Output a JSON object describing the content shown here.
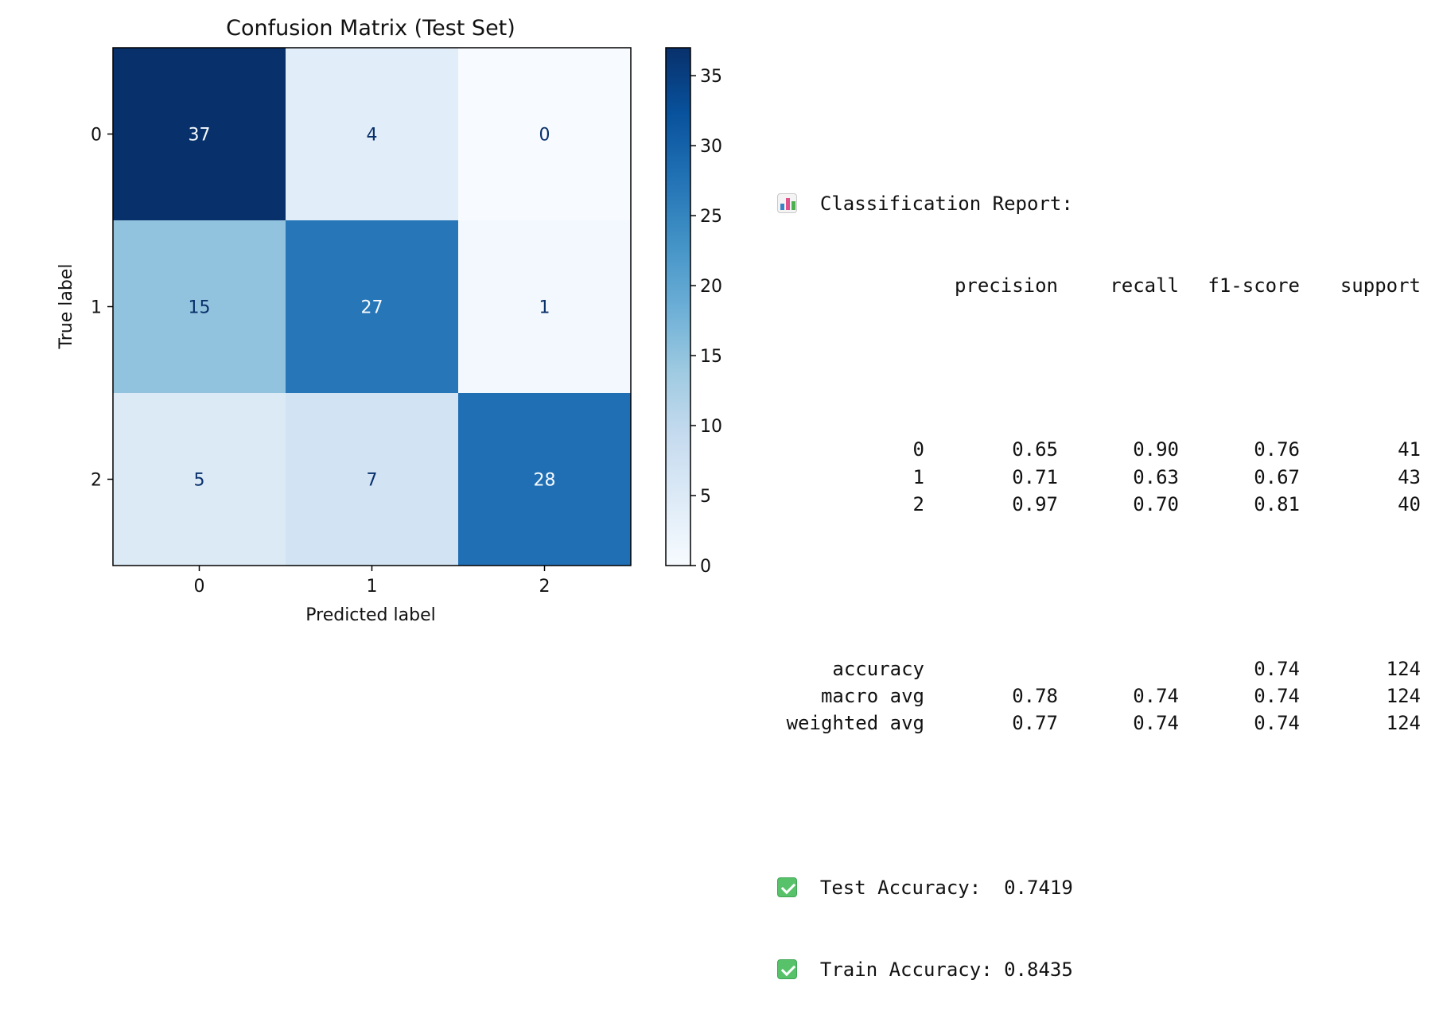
{
  "chart_data": {
    "type": "heatmap",
    "title": "Confusion Matrix (Test Set)",
    "xlabel": "Predicted label",
    "ylabel": "True label",
    "x_categories": [
      "0",
      "1",
      "2"
    ],
    "y_categories": [
      "0",
      "1",
      "2"
    ],
    "values": [
      [
        37,
        4,
        0
      ],
      [
        15,
        27,
        1
      ],
      [
        5,
        7,
        28
      ]
    ],
    "colormap": "Blues",
    "colorbar": {
      "min": 0,
      "max": 37,
      "ticks": [
        0,
        5,
        10,
        15,
        20,
        25,
        30,
        35
      ]
    }
  },
  "report": {
    "title": "Classification Report:",
    "title_icon": "bar-chart-icon",
    "columns": [
      "precision",
      "recall",
      "f1-score",
      "support"
    ],
    "rows": [
      {
        "label": "0",
        "precision": "0.65",
        "recall": "0.90",
        "f1": "0.76",
        "support": "41"
      },
      {
        "label": "1",
        "precision": "0.71",
        "recall": "0.63",
        "f1": "0.67",
        "support": "43"
      },
      {
        "label": "2",
        "precision": "0.97",
        "recall": "0.70",
        "f1": "0.81",
        "support": "40"
      }
    ],
    "summary": [
      {
        "label": "accuracy",
        "precision": "",
        "recall": "",
        "f1": "0.74",
        "support": "124"
      },
      {
        "label": "macro avg",
        "precision": "0.78",
        "recall": "0.74",
        "f1": "0.74",
        "support": "124"
      },
      {
        "label": "weighted avg",
        "precision": "0.77",
        "recall": "0.74",
        "f1": "0.74",
        "support": "124"
      }
    ],
    "test_accuracy_label": "Test Accuracy:  0.7419",
    "train_accuracy_label": "Train Accuracy: 0.8435",
    "check_icon": "check-mark-icon"
  }
}
